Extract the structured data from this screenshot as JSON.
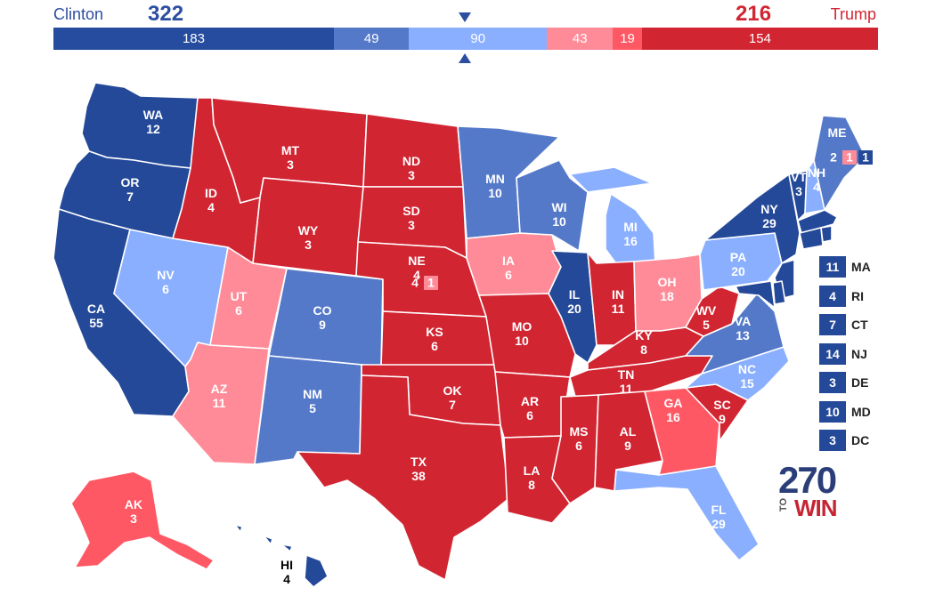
{
  "header": {
    "left_candidate": "Clinton",
    "left_total": "322",
    "right_candidate": "Trump",
    "right_total": "216"
  },
  "bar_segments": [
    {
      "label": "183",
      "value": 183,
      "color": "#254c9e"
    },
    {
      "label": "49",
      "value": 49,
      "color": "#5579c9"
    },
    {
      "label": "90",
      "value": 90,
      "color": "#8aafff"
    },
    {
      "label": "43",
      "value": 43,
      "color": "#ff8b98"
    },
    {
      "label": "19",
      "value": 19,
      "color": "#ff5865"
    },
    {
      "label": "154",
      "value": 154,
      "color": "#d22532"
    }
  ],
  "colors": {
    "safe_dem": "#244999",
    "likely_dem": "#5579c9",
    "lean_dem": "#8aafff",
    "lean_rep": "#ff8b98",
    "likely_rep": "#ff5865",
    "safe_rep": "#d22532"
  },
  "states": [
    {
      "abbr": "WA",
      "ev": "12",
      "rating": "safe_dem"
    },
    {
      "abbr": "OR",
      "ev": "7",
      "rating": "safe_dem"
    },
    {
      "abbr": "CA",
      "ev": "55",
      "rating": "safe_dem"
    },
    {
      "abbr": "NV",
      "ev": "6",
      "rating": "lean_dem"
    },
    {
      "abbr": "ID",
      "ev": "4",
      "rating": "safe_rep"
    },
    {
      "abbr": "MT",
      "ev": "3",
      "rating": "safe_rep"
    },
    {
      "abbr": "WY",
      "ev": "3",
      "rating": "safe_rep"
    },
    {
      "abbr": "UT",
      "ev": "6",
      "rating": "lean_rep"
    },
    {
      "abbr": "AZ",
      "ev": "11",
      "rating": "lean_rep"
    },
    {
      "abbr": "CO",
      "ev": "9",
      "rating": "likely_dem"
    },
    {
      "abbr": "NM",
      "ev": "5",
      "rating": "likely_dem"
    },
    {
      "abbr": "ND",
      "ev": "3",
      "rating": "safe_rep"
    },
    {
      "abbr": "SD",
      "ev": "3",
      "rating": "safe_rep"
    },
    {
      "abbr": "NE",
      "ev": "4",
      "rating": "safe_rep"
    },
    {
      "abbr": "KS",
      "ev": "6",
      "rating": "safe_rep"
    },
    {
      "abbr": "OK",
      "ev": "7",
      "rating": "safe_rep"
    },
    {
      "abbr": "TX",
      "ev": "38",
      "rating": "safe_rep"
    },
    {
      "abbr": "MN",
      "ev": "10",
      "rating": "likely_dem"
    },
    {
      "abbr": "IA",
      "ev": "6",
      "rating": "lean_rep"
    },
    {
      "abbr": "MO",
      "ev": "10",
      "rating": "safe_rep"
    },
    {
      "abbr": "AR",
      "ev": "6",
      "rating": "safe_rep"
    },
    {
      "abbr": "LA",
      "ev": "8",
      "rating": "safe_rep"
    },
    {
      "abbr": "WI",
      "ev": "10",
      "rating": "likely_dem"
    },
    {
      "abbr": "IL",
      "ev": "20",
      "rating": "safe_dem"
    },
    {
      "abbr": "MI",
      "ev": "16",
      "rating": "lean_dem"
    },
    {
      "abbr": "IN",
      "ev": "11",
      "rating": "safe_rep"
    },
    {
      "abbr": "OH",
      "ev": "18",
      "rating": "lean_rep"
    },
    {
      "abbr": "KY",
      "ev": "8",
      "rating": "safe_rep"
    },
    {
      "abbr": "TN",
      "ev": "11",
      "rating": "safe_rep"
    },
    {
      "abbr": "MS",
      "ev": "6",
      "rating": "safe_rep"
    },
    {
      "abbr": "AL",
      "ev": "9",
      "rating": "safe_rep"
    },
    {
      "abbr": "GA",
      "ev": "16",
      "rating": "likely_rep"
    },
    {
      "abbr": "FL",
      "ev": "29",
      "rating": "lean_dem"
    },
    {
      "abbr": "SC",
      "ev": "9",
      "rating": "safe_rep"
    },
    {
      "abbr": "NC",
      "ev": "15",
      "rating": "lean_dem"
    },
    {
      "abbr": "VA",
      "ev": "13",
      "rating": "likely_dem"
    },
    {
      "abbr": "WV",
      "ev": "5",
      "rating": "safe_rep"
    },
    {
      "abbr": "PA",
      "ev": "20",
      "rating": "lean_dem"
    },
    {
      "abbr": "NY",
      "ev": "29",
      "rating": "safe_dem"
    },
    {
      "abbr": "VT",
      "ev": "3",
      "rating": "safe_dem"
    },
    {
      "abbr": "NH",
      "ev": "4",
      "rating": "lean_dem"
    },
    {
      "abbr": "ME",
      "ev": "",
      "rating": "likely_dem"
    },
    {
      "abbr": "AK",
      "ev": "3",
      "rating": "likely_rep"
    },
    {
      "abbr": "HI",
      "ev": "4",
      "rating": "safe_dem"
    }
  ],
  "district_boxes": {
    "me": [
      {
        "value": "2",
        "rating": "likely_dem"
      },
      {
        "value": "1",
        "rating": "lean_rep"
      },
      {
        "value": "1",
        "rating": "safe_dem"
      }
    ],
    "ne": [
      {
        "value": "4",
        "rating": "safe_rep"
      },
      {
        "value": "1",
        "rating": "lean_rep"
      }
    ]
  },
  "small_states": [
    {
      "abbr": "MA",
      "ev": "11",
      "rating": "safe_dem"
    },
    {
      "abbr": "RI",
      "ev": "4",
      "rating": "safe_dem"
    },
    {
      "abbr": "CT",
      "ev": "7",
      "rating": "safe_dem"
    },
    {
      "abbr": "NJ",
      "ev": "14",
      "rating": "safe_dem"
    },
    {
      "abbr": "DE",
      "ev": "3",
      "rating": "safe_dem"
    },
    {
      "abbr": "MD",
      "ev": "10",
      "rating": "safe_dem"
    },
    {
      "abbr": "DC",
      "ev": "3",
      "rating": "safe_dem"
    }
  ],
  "logo": {
    "number": "270",
    "prefix": "TO",
    "word": "WIN"
  }
}
